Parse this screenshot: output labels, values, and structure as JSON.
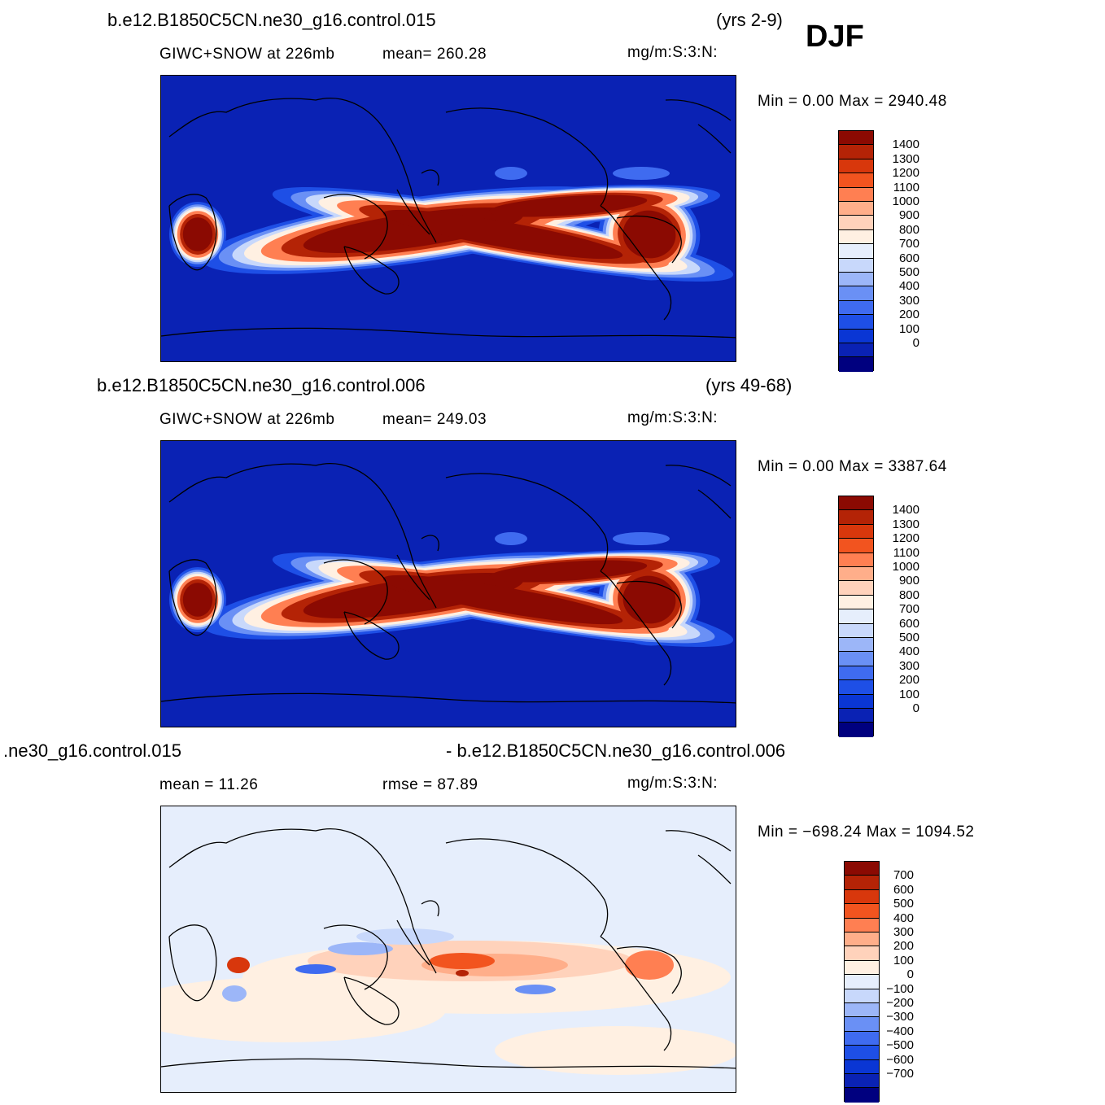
{
  "season": "DJF",
  "panels": [
    {
      "id": "top",
      "case": "b.e12.B1850C5CN.ne30_g16.control.015",
      "years": "(yrs 2-9)",
      "field": "GIWC+SNOW  at  226mb",
      "stat1": "mean=  260.28",
      "stat2": "",
      "units": "mg/m:S:3:N:",
      "minmax": "Min  =     0.00  Max  =  2940.48"
    },
    {
      "id": "middle",
      "case": "b.e12.B1850C5CN.ne30_g16.control.006",
      "years": "(yrs 49-68)",
      "field": "GIWC+SNOW  at  226mb",
      "stat1": "mean=  249.03",
      "stat2": "",
      "units": "mg/m:S:3:N:",
      "minmax": "Min  =     0.00  Max  =  3387.64"
    },
    {
      "id": "bottom",
      "case": ".ne30_g16.control.015",
      "years": "- b.e12.B1850C5CN.ne30_g16.control.006",
      "field": "mean  =    11.26",
      "stat1": "rmse  =    87.89",
      "stat2": "",
      "units": "mg/m:S:3:N:",
      "minmax": "Min  =  −698.24  Max  =  1094.52"
    }
  ],
  "chart_data": [
    {
      "type": "heatmap",
      "title": "b.e12.B1850C5CN.ne30_g16.control.015",
      "levels": [
        0,
        100,
        200,
        300,
        400,
        500,
        600,
        700,
        800,
        900,
        1000,
        1100,
        1200,
        1300,
        1400
      ],
      "level_labels": [
        "1400",
        "1300",
        "1200",
        "1100",
        "1000",
        "900",
        "800",
        "700",
        "600",
        "500",
        "400",
        "300",
        "200",
        "100",
        "0"
      ],
      "colors": [
        "#00007f",
        "#0a22b4",
        "#0a36d4",
        "#1e4fe6",
        "#3f6bf0",
        "#6a90f5",
        "#9cb6f8",
        "#c8d8fb",
        "#e6eefc",
        "#fff0e2",
        "#ffd2bb",
        "#ffae8a",
        "#ff7f52",
        "#f2541f",
        "#d8370c",
        "#b42306",
        "#8b0a02"
      ],
      "mean": 260.28,
      "min": 0.0,
      "max": 2940.48,
      "units": "mg/m:S:3:N:"
    },
    {
      "type": "heatmap",
      "title": "b.e12.B1850C5CN.ne30_g16.control.006",
      "levels": [
        0,
        100,
        200,
        300,
        400,
        500,
        600,
        700,
        800,
        900,
        1000,
        1100,
        1200,
        1300,
        1400
      ],
      "level_labels": [
        "1400",
        "1300",
        "1200",
        "1100",
        "1000",
        "900",
        "800",
        "700",
        "600",
        "500",
        "400",
        "300",
        "200",
        "100",
        "0"
      ],
      "colors": [
        "#00007f",
        "#0a22b4",
        "#0a36d4",
        "#1e4fe6",
        "#3f6bf0",
        "#6a90f5",
        "#9cb6f8",
        "#c8d8fb",
        "#e6eefc",
        "#fff0e2",
        "#ffd2bb",
        "#ffae8a",
        "#ff7f52",
        "#f2541f",
        "#d8370c",
        "#b42306",
        "#8b0a02"
      ],
      "mean": 249.03,
      "min": 0.0,
      "max": 3387.64,
      "units": "mg/m:S:3:N:"
    },
    {
      "type": "heatmap",
      "title": ".ne30_g16.control.015 - b.e12.B1850C5CN.ne30_g16.control.006",
      "levels": [
        -700,
        -600,
        -500,
        -400,
        -300,
        -200,
        -100,
        0,
        100,
        200,
        300,
        400,
        500,
        600,
        700
      ],
      "level_labels": [
        "700",
        "600",
        "500",
        "400",
        "300",
        "200",
        "100",
        "0",
        "−100",
        "−200",
        "−300",
        "−400",
        "−500",
        "−600",
        "−700"
      ],
      "colors": [
        "#00007f",
        "#0a22b4",
        "#0a36d4",
        "#1e4fe6",
        "#3f6bf0",
        "#6a90f5",
        "#9cb6f8",
        "#c8d8fb",
        "#e6eefc",
        "#fff0e2",
        "#ffd2bb",
        "#ffae8a",
        "#ff7f52",
        "#f2541f",
        "#d8370c",
        "#b42306",
        "#8b0a02"
      ],
      "mean": 11.26,
      "rmse": 87.89,
      "min": -698.24,
      "max": 1094.52,
      "units": "mg/m:S:3:N:"
    }
  ]
}
